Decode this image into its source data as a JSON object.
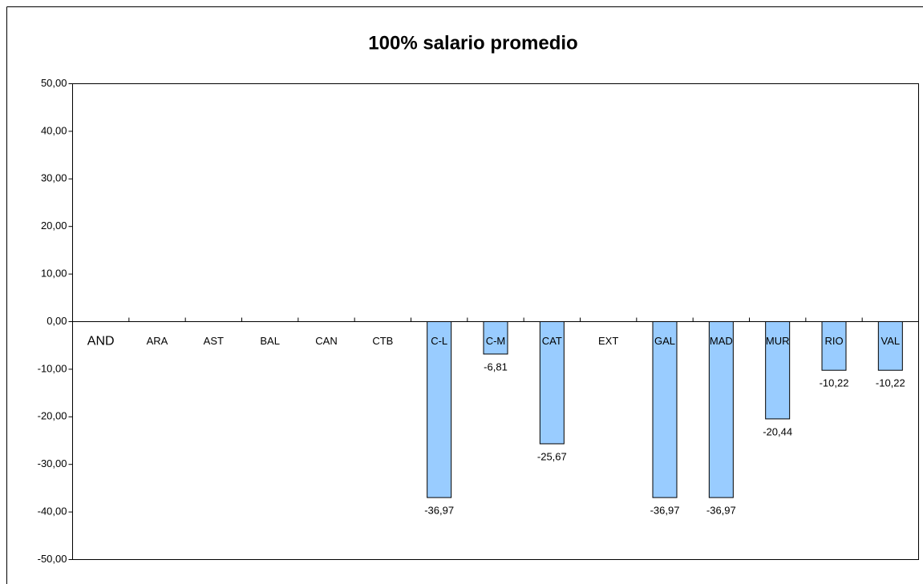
{
  "chart_data": {
    "type": "bar",
    "title": "100% salario promedio",
    "categories": [
      "AND",
      "ARA",
      "AST",
      "BAL",
      "CAN",
      "CTB",
      "C-L",
      "C-M",
      "CAT",
      "EXT",
      "GAL",
      "MAD",
      "MUR",
      "RIO",
      "VAL"
    ],
    "values": [
      null,
      null,
      null,
      null,
      null,
      null,
      -36.97,
      -6.81,
      -25.67,
      null,
      -36.97,
      -36.97,
      -20.44,
      -10.22,
      -10.22
    ],
    "value_labels": [
      null,
      null,
      null,
      null,
      null,
      null,
      "-36,97",
      "-6,81",
      "-25,67",
      null,
      "-36,97",
      "-36,97",
      "-20,44",
      "-10,22",
      "-10,22"
    ],
    "color": "#99ccff",
    "ylim": [
      -50,
      50
    ],
    "yticks": [
      {
        "value": 50,
        "label": "50,00"
      },
      {
        "value": 40,
        "label": "40,00"
      },
      {
        "value": 30,
        "label": "30,00"
      },
      {
        "value": 20,
        "label": "20,00"
      },
      {
        "value": 10,
        "label": "10,00"
      },
      {
        "value": 0,
        "label": "0,00"
      },
      {
        "value": -10,
        "label": "-10,00"
      },
      {
        "value": -20,
        "label": "-20,00"
      },
      {
        "value": -30,
        "label": "-30,00"
      },
      {
        "value": -40,
        "label": "-40,00"
      },
      {
        "value": -50,
        "label": "-50,00"
      }
    ],
    "grid": false
  }
}
